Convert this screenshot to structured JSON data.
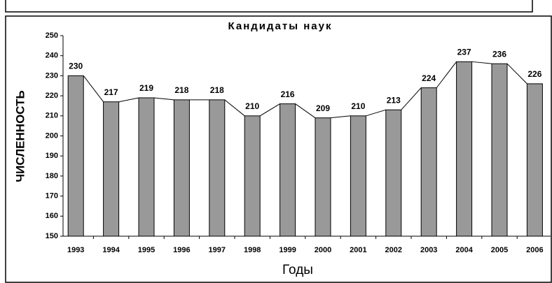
{
  "chart_data": {
    "type": "bar",
    "title": "Кандидаты наук",
    "x_label": "Годы",
    "y_label": "ЧИСЛЕННОСТЬ",
    "categories": [
      "1993",
      "1994",
      "1995",
      "1996",
      "1997",
      "1998",
      "1999",
      "2000",
      "2001",
      "2002",
      "2003",
      "2004",
      "2005",
      "2006"
    ],
    "values": [
      230,
      217,
      219,
      218,
      218,
      210,
      216,
      209,
      210,
      213,
      224,
      237,
      236,
      226
    ],
    "color": "#999999",
    "ylim": [
      150,
      250
    ],
    "yticks": [
      150,
      160,
      170,
      180,
      190,
      200,
      210,
      220,
      230,
      240,
      250
    ]
  }
}
